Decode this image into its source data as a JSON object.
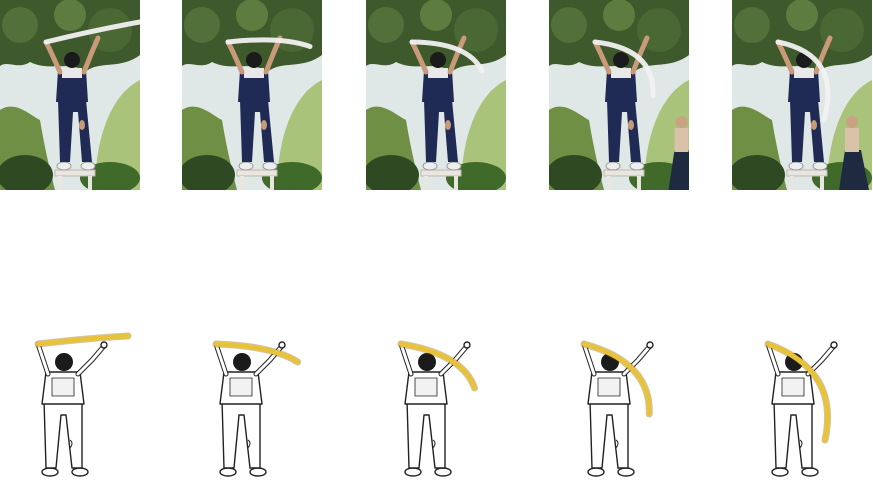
{
  "figure": {
    "rows": [
      {
        "kind": "photo",
        "frames": [
          {
            "ribbon_sweep": 0.0,
            "second_person_visible": 0.0
          },
          {
            "ribbon_sweep": 0.25,
            "second_person_visible": 0.0
          },
          {
            "ribbon_sweep": 0.5,
            "second_person_visible": 0.0
          },
          {
            "ribbon_sweep": 0.75,
            "second_person_visible": 0.5
          },
          {
            "ribbon_sweep": 1.0,
            "second_person_visible": 1.0
          }
        ]
      },
      {
        "kind": "sketch",
        "frames": [
          {
            "ribbon_sweep": 0.0
          },
          {
            "ribbon_sweep": 0.25
          },
          {
            "ribbon_sweep": 0.5
          },
          {
            "ribbon_sweep": 0.75
          },
          {
            "ribbon_sweep": 1.0
          }
        ]
      }
    ],
    "colors": {
      "foliage_dark": "#3e5a2c",
      "foliage_mid": "#6f8f45",
      "foliage_light": "#a9c47a",
      "sky": "#dfe8e6",
      "overalls": "#1f2a55",
      "skin": "#c99a7a",
      "hair": "#1b1b1b",
      "stool": "#e9e6df",
      "ribbon_photo": "#f1f1f1",
      "ribbon_sketch": "#e8c23a",
      "ink": "#222222"
    }
  }
}
